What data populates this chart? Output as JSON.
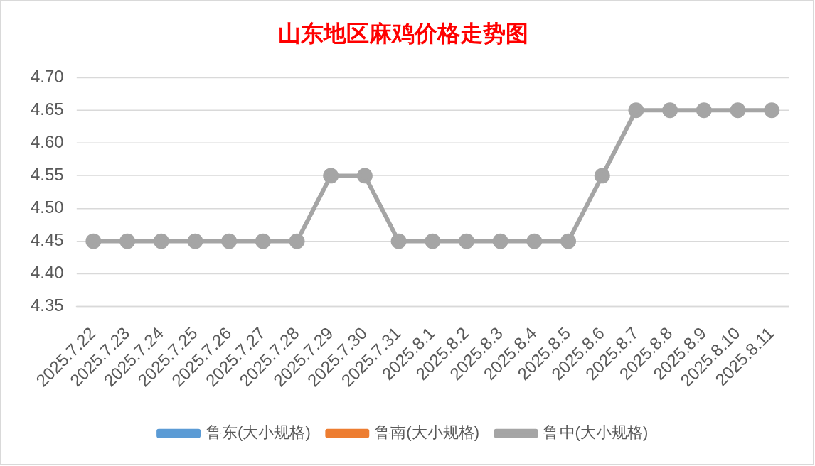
{
  "chart_data": {
    "type": "line",
    "title": "山东地区麻鸡价格走势图",
    "categories": [
      "2025.7.22",
      "2025.7.23",
      "2025.7.24",
      "2025.7.25",
      "2025.7.26",
      "2025.7.27",
      "2025.7.28",
      "2025.7.29",
      "2025.7.30",
      "2025.7.31",
      "2025.8.1",
      "2025.8.2",
      "2025.8.3",
      "2025.8.4",
      "2025.8.5",
      "2025.8.6",
      "2025.8.7",
      "2025.8.8",
      "2025.8.9",
      "2025.8.10",
      "2025.8.11"
    ],
    "series": [
      {
        "name": "鲁东(大小规格)",
        "color": "#5b9bd5",
        "values": [
          null,
          null,
          null,
          null,
          null,
          null,
          null,
          null,
          null,
          null,
          null,
          null,
          null,
          null,
          null,
          null,
          null,
          null,
          null,
          null,
          null
        ]
      },
      {
        "name": "鲁南(大小规格)",
        "color": "#ed7d31",
        "values": [
          null,
          null,
          null,
          null,
          null,
          null,
          null,
          null,
          null,
          null,
          null,
          null,
          null,
          null,
          null,
          null,
          null,
          null,
          null,
          null,
          null
        ]
      },
      {
        "name": "鲁中(大小规格)",
        "color": "#a5a5a5",
        "values": [
          4.45,
          4.45,
          4.45,
          4.45,
          4.45,
          4.45,
          4.45,
          4.55,
          4.55,
          4.45,
          4.45,
          4.45,
          4.45,
          4.45,
          4.45,
          4.55,
          4.65,
          4.65,
          4.65,
          4.65,
          4.65
        ]
      }
    ],
    "ylim": [
      4.35,
      4.7
    ],
    "yticks": [
      4.35,
      {
        "value": 4.4,
        "label": "4.40"
      },
      4.45,
      {
        "value": 4.5,
        "label": "4.50"
      },
      4.55,
      {
        "value": 4.6,
        "label": "4.60"
      },
      4.65,
      {
        "value": 4.7,
        "label": "4.70"
      }
    ],
    "grid": "y",
    "legend": "bottom",
    "marker": "circle",
    "line_style": "solid"
  }
}
